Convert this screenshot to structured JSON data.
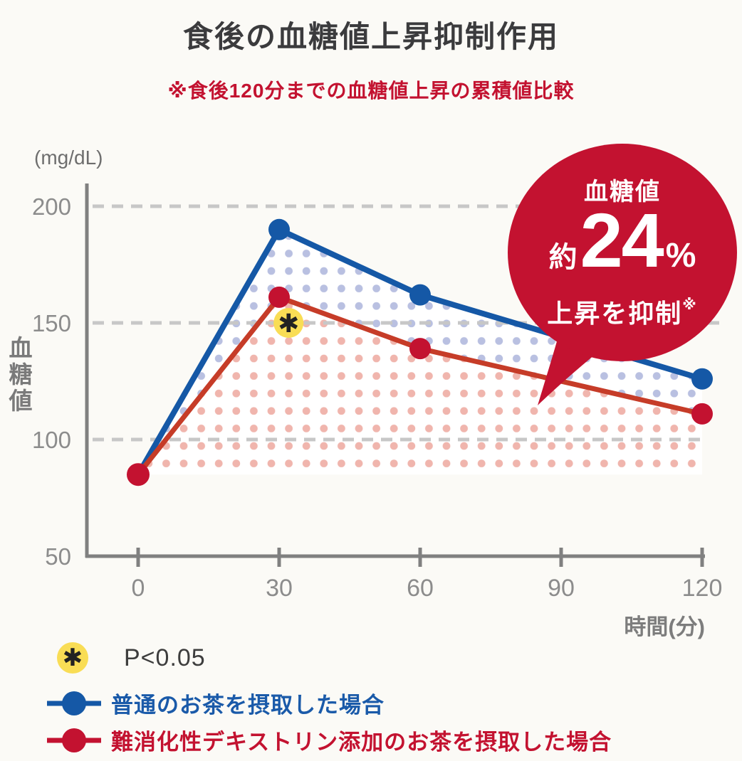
{
  "title": "食後の血糖値上昇抑制作用",
  "subtitle": "※食後120分までの血糖値上昇の累積値比較",
  "badge": {
    "line1": "血糖値",
    "approx": "約",
    "value": "24",
    "unit": "%",
    "line3": "上昇を抑制",
    "note_mark": "※"
  },
  "legend": {
    "significance": {
      "symbol": "✱",
      "label": "P<0.05"
    },
    "series_blue_label": "普通のお茶を摂取した場合",
    "series_red_label": "難消化性デキストリン添加のお茶を摂取した場合"
  },
  "colors": {
    "background": "#fbfaf6",
    "title_gray": "#3b3b3d",
    "accent_red": "#c31230",
    "line_blue": "#1558a6",
    "line_red": "#c63c28",
    "dot_blue": "#b9c0e1",
    "dot_red": "#f0b5ad",
    "axis_gray": "#808080",
    "grid_gray": "#c7c7c7",
    "tick_label_gray": "#8c8c8c",
    "yellow": "#f9dd55"
  },
  "chart_data": {
    "type": "line",
    "x": [
      0,
      30,
      60,
      120
    ],
    "series": [
      {
        "name": "普通のお茶を摂取した場合",
        "color": "#1558a6",
        "values": [
          85,
          190,
          162,
          126
        ]
      },
      {
        "name": "難消化性デキストリン添加のお茶を摂取した場合",
        "color": "#c63c28",
        "marker_color": "#c31230",
        "values": [
          85,
          161,
          139,
          111
        ]
      }
    ],
    "baseline_value": 85,
    "x_ticks": [
      0,
      30,
      60,
      90,
      120
    ],
    "y_ticks": [
      200,
      150,
      100,
      50
    ],
    "y_gridlines": [
      200,
      150,
      100
    ],
    "xlabel": "時間(分)",
    "ylabel": "血糖値",
    "y_unit": "(mg/dL)",
    "xlim": [
      0,
      120
    ],
    "ylim": [
      50,
      210
    ],
    "grid": "dashed horizontal",
    "legend_position": "bottom-left",
    "significance_marker": {
      "x": 32,
      "y": 150,
      "symbol": "✱",
      "label": "P<0.05"
    },
    "annotation": "血糖値 約24% 上昇を抑制※"
  }
}
